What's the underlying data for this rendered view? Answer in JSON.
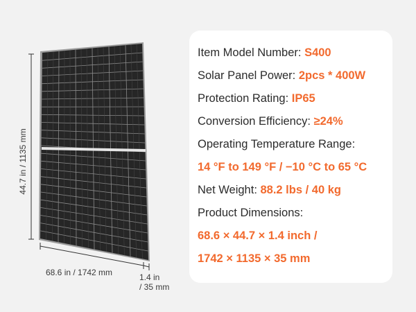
{
  "dimensions": {
    "height": "44.7 in / 1135 mm",
    "width": "68.6 in / 1742 mm",
    "depth_line1": "1.4 in",
    "depth_line2": "/ 35 mm"
  },
  "specs": {
    "model": {
      "label": "Item Model Number: ",
      "value": "S400"
    },
    "power": {
      "label": "Solar Panel Power: ",
      "value": "2pcs * 400W"
    },
    "rating": {
      "label": "Protection Rating: ",
      "value": "IP65"
    },
    "efficiency": {
      "label": "Conversion Efficiency: ",
      "value": "≥24%"
    },
    "temperature": {
      "label": "Operating Temperature Range:",
      "value": "14 °F to 149 °F  / −10 °C to 65 °C"
    },
    "weight": {
      "label": "Net Weight: ",
      "value": "88.2 lbs / 40 kg"
    },
    "product_dimensions": {
      "label": "Product Dimensions:",
      "value_line1": "68.6 × 44.7 × 1.4 inch /",
      "value_line2": "1742 × 1135 × 35 mm"
    }
  },
  "colors": {
    "accent": "#f26a2e",
    "text": "#2b2b2b",
    "card": "#ffffff",
    "background": "#f2f2f2",
    "panel_frame": "#1a1a1a",
    "panel_cell": "#2c2c2c"
  }
}
